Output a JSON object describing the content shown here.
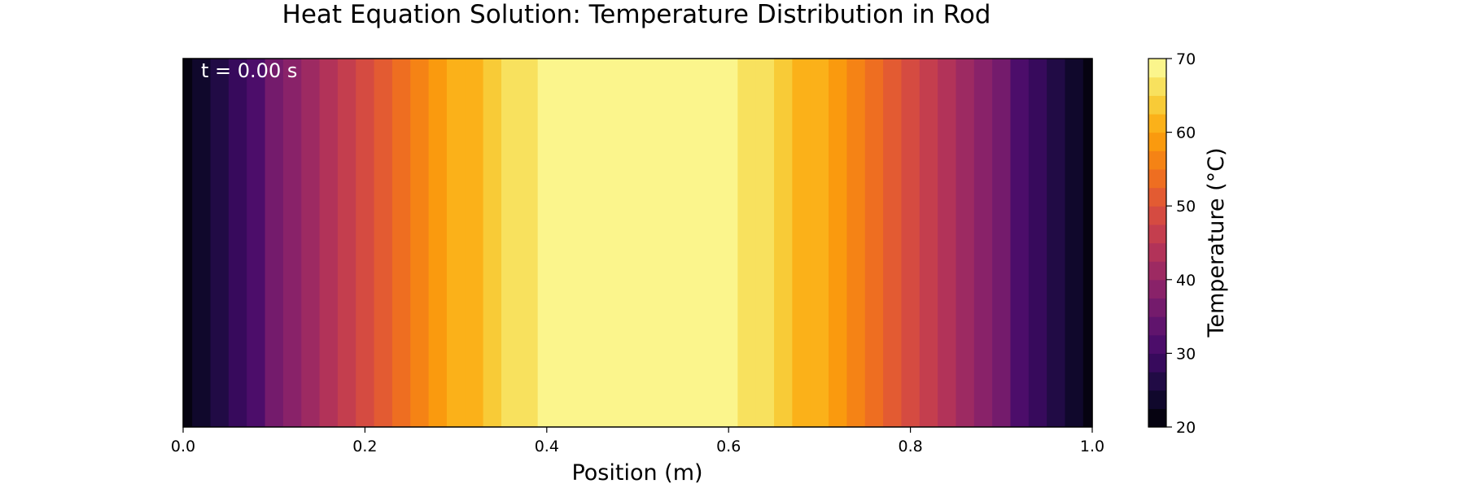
{
  "chart_data": {
    "type": "heatmap",
    "title": "Heat Equation Solution: Temperature Distribution in Rod",
    "xlabel": "Position (m)",
    "ylabel": "",
    "xlim": [
      0.0,
      1.0
    ],
    "x_ticks": [
      "0.0",
      "0.2",
      "0.4",
      "0.6",
      "0.8",
      "1.0"
    ],
    "annotation": "t = 0.00 s",
    "colormap": "inferno",
    "colorbar": {
      "label": "Temperature (°C)",
      "range": [
        20,
        70
      ],
      "ticks": [
        "20",
        "30",
        "40",
        "50",
        "60",
        "70"
      ],
      "levels": 20
    },
    "x": [
      0.0,
      0.02,
      0.04,
      0.06,
      0.08,
      0.1,
      0.12,
      0.14,
      0.16,
      0.18,
      0.2,
      0.22,
      0.24,
      0.26,
      0.28,
      0.3,
      0.32,
      0.34,
      0.36,
      0.38,
      0.4,
      0.42,
      0.44,
      0.46,
      0.48,
      0.5,
      0.52,
      0.54,
      0.56,
      0.58,
      0.6,
      0.62,
      0.64,
      0.66,
      0.68,
      0.7,
      0.72,
      0.74,
      0.76,
      0.78,
      0.8,
      0.82,
      0.84,
      0.86,
      0.88,
      0.9,
      0.92,
      0.94,
      0.96,
      0.98,
      1.0
    ],
    "values": [
      20.0,
      23.1,
      26.2,
      29.4,
      32.4,
      35.5,
      38.4,
      41.3,
      44.1,
      46.8,
      49.4,
      51.9,
      54.3,
      56.5,
      58.6,
      60.6,
      62.4,
      64.0,
      65.5,
      66.7,
      67.8,
      68.7,
      69.4,
      69.8,
      70.0,
      70.0,
      70.0,
      69.8,
      69.4,
      68.7,
      67.8,
      66.7,
      65.5,
      64.0,
      62.4,
      60.6,
      58.6,
      56.5,
      54.3,
      51.9,
      49.4,
      46.8,
      44.1,
      41.3,
      38.4,
      35.5,
      32.4,
      29.4,
      26.2,
      23.1,
      20.0
    ]
  }
}
